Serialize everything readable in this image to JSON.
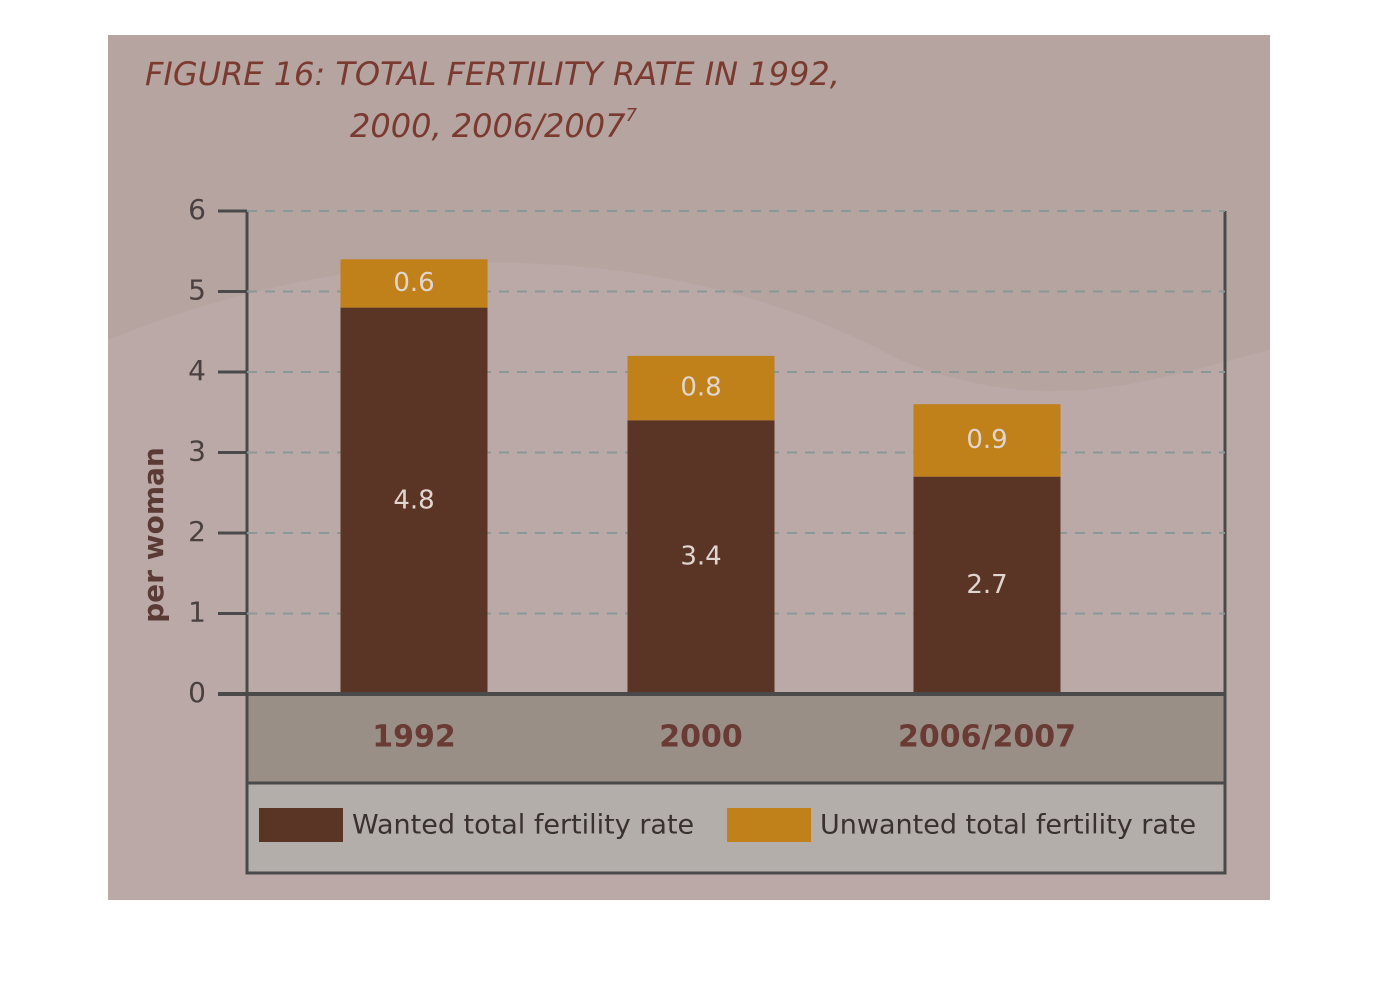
{
  "chart_data": {
    "type": "stacked_bar",
    "title": [
      "FIGURE 16: TOTAL FERTILITY RATE IN 1992,",
      "2000, 2006/2007"
    ],
    "title_note": "7",
    "ylabel": "per woman",
    "categories": [
      "1992",
      "2000",
      "2006/2007"
    ],
    "series": [
      {
        "name": "Wanted total fertility rate",
        "color": "#5a3526",
        "values": [
          4.8,
          3.4,
          2.7
        ]
      },
      {
        "name": "Unwanted total fertility rate",
        "color": "#c0801a",
        "values": [
          0.6,
          0.8,
          0.9
        ]
      }
    ],
    "ylim": [
      0,
      6
    ],
    "yticks": [
      0,
      1,
      2,
      3,
      4,
      5,
      6
    ],
    "grid": true,
    "legend": "bottom"
  }
}
